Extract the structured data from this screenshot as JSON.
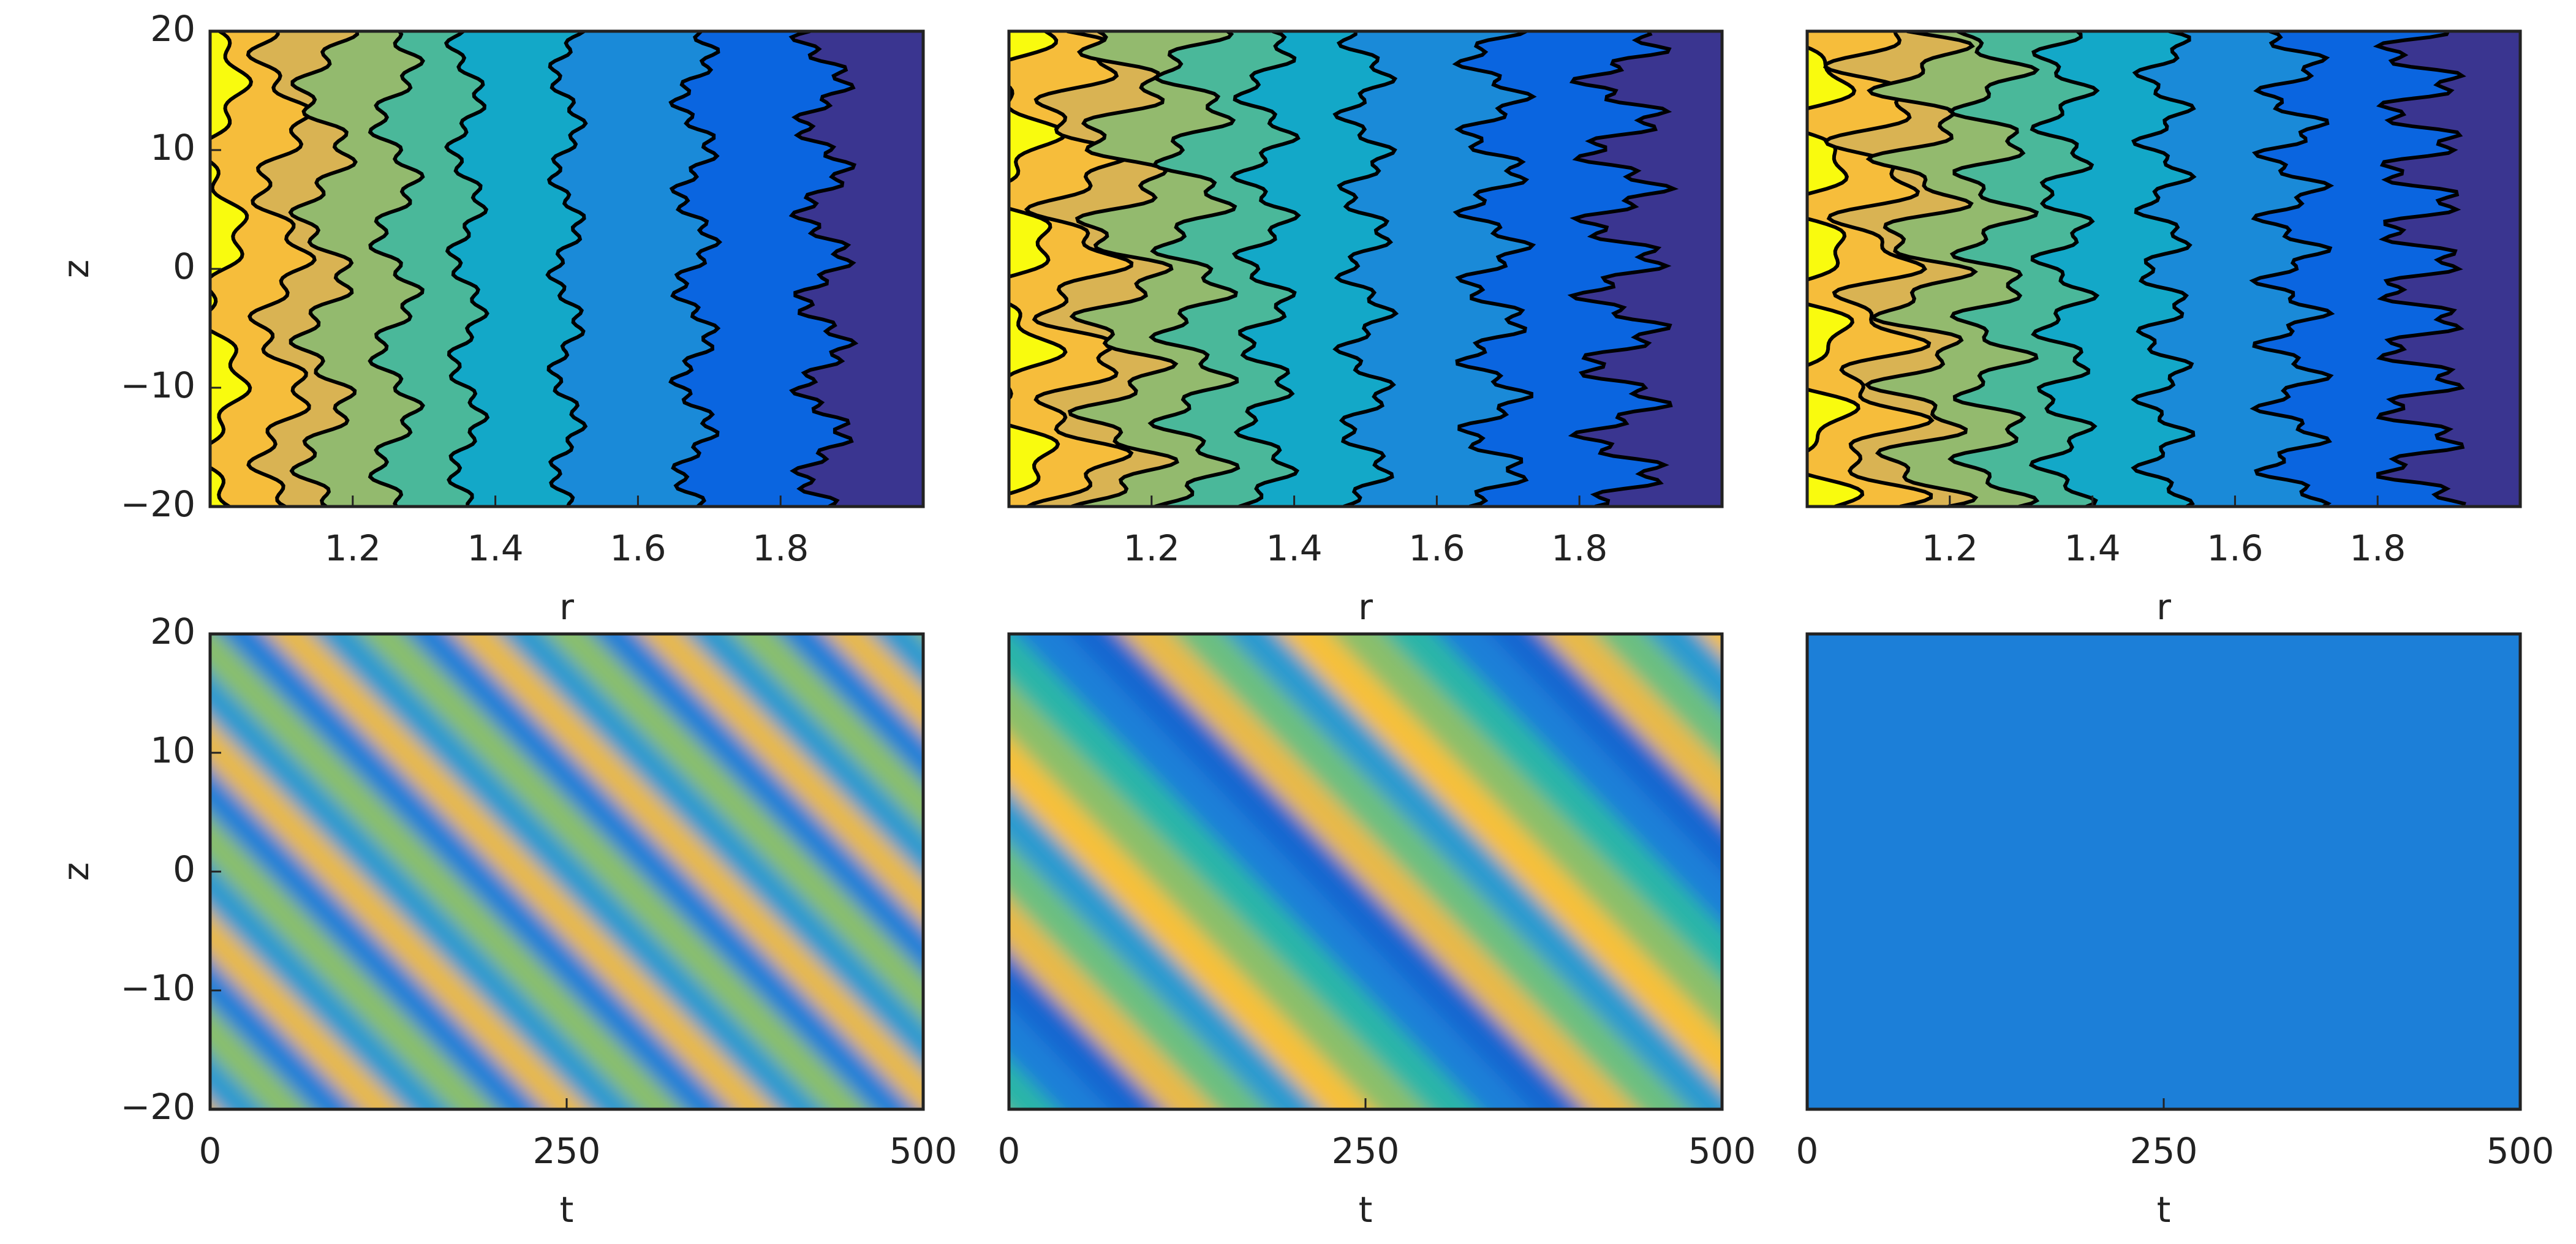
{
  "chart_data": [
    {
      "type": "contour",
      "xlabel": "r",
      "ylabel": "z",
      "xlim": [
        1,
        2
      ],
      "ylim": [
        -20,
        20
      ],
      "xticks": [
        1.2,
        1.4,
        1.6,
        1.8
      ],
      "yticks": [
        {
          "value": -20,
          "label": "−20"
        },
        {
          "value": -10,
          "label": "−10"
        },
        0,
        10,
        20
      ]
    },
    {
      "type": "contour",
      "xlabel": "r",
      "xlim": [
        1,
        2
      ],
      "ylim": [
        -20,
        20
      ],
      "xticks": [
        1.2,
        1.4,
        1.6,
        1.8
      ]
    },
    {
      "type": "contour",
      "xlabel": "r",
      "xlim": [
        1,
        2
      ],
      "ylim": [
        -20,
        20
      ],
      "xticks": [
        1.2,
        1.4,
        1.6,
        1.8
      ]
    },
    {
      "type": "heatmap",
      "xlabel": "t",
      "ylabel": "z",
      "xlim": [
        0,
        500
      ],
      "ylim": [
        -20,
        20
      ],
      "xticks": [
        0,
        250,
        500
      ],
      "yticks": [
        {
          "value": -20,
          "label": "−20"
        },
        {
          "value": -10,
          "label": "−10"
        },
        0,
        10,
        20
      ]
    },
    {
      "type": "heatmap",
      "xlabel": "t",
      "xlim": [
        0,
        500
      ],
      "ylim": [
        -20,
        20
      ],
      "xticks": [
        0,
        250,
        500
      ]
    },
    {
      "type": "heatmap",
      "xlabel": "t",
      "xlim": [
        0,
        500
      ],
      "ylim": [
        -20,
        20
      ],
      "xticks": [
        0,
        250,
        500
      ]
    }
  ]
}
